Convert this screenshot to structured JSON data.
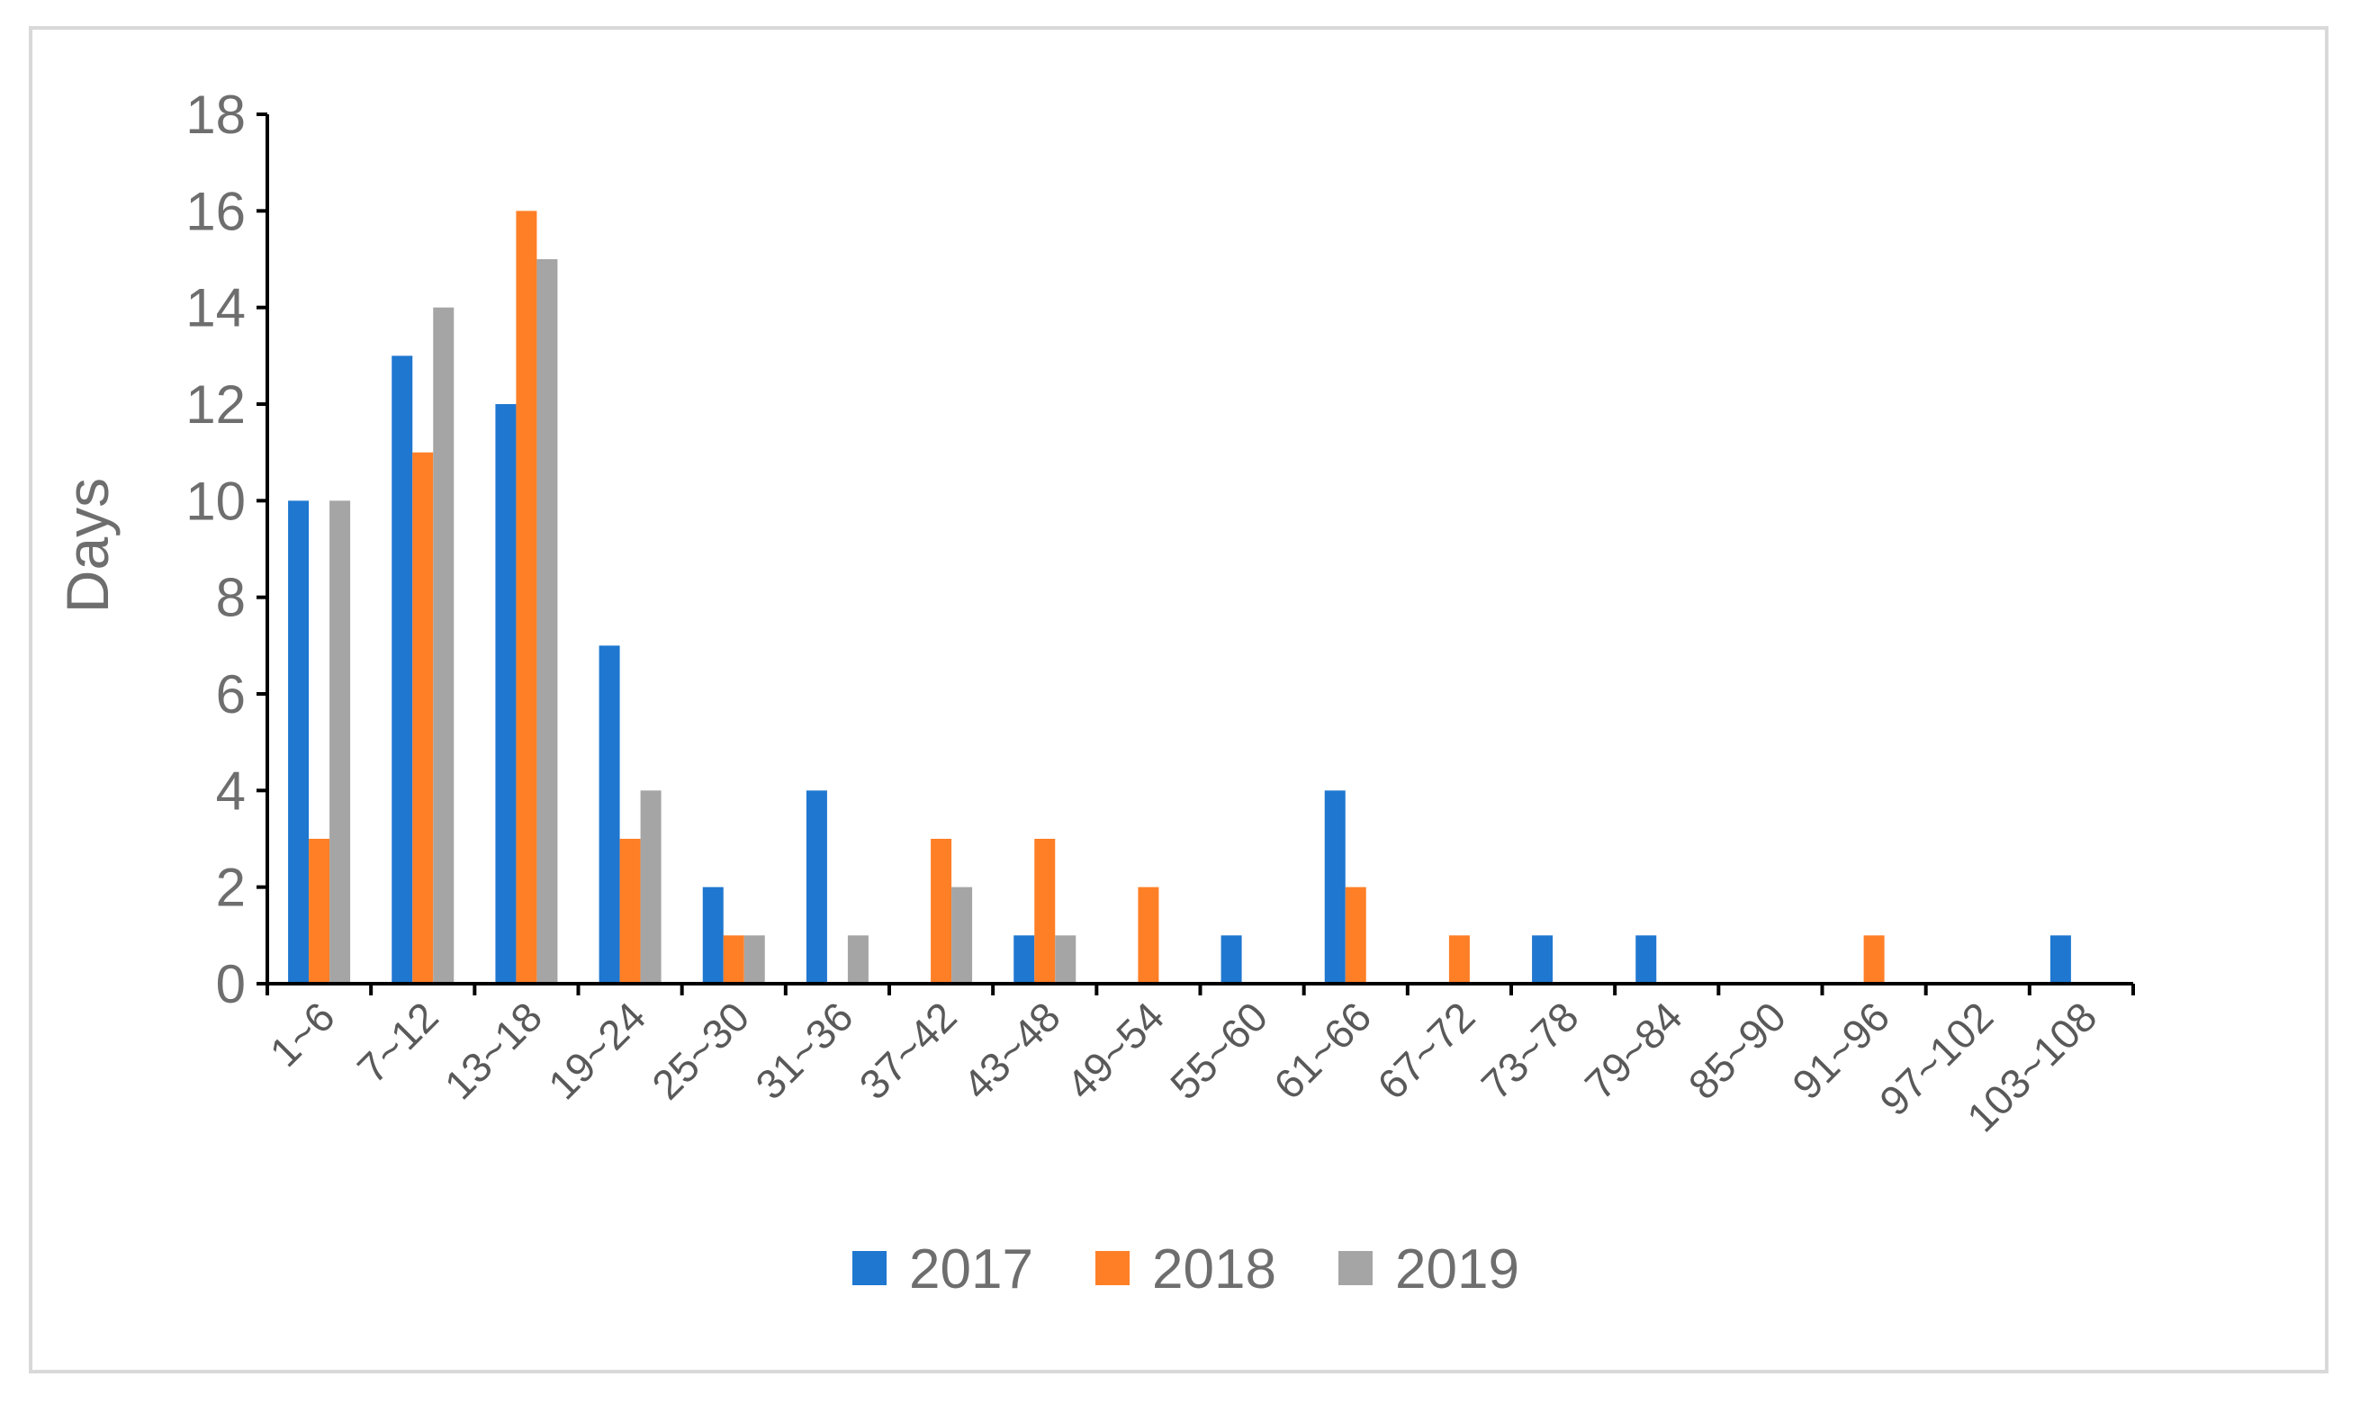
{
  "chart_data": {
    "type": "bar",
    "title": "",
    "xlabel": "",
    "ylabel": "Days",
    "ylim": [
      0,
      18
    ],
    "yticks": [
      0,
      2,
      4,
      6,
      8,
      10,
      12,
      14,
      16,
      18
    ],
    "grid": false,
    "legend_position": "bottom",
    "categories": [
      "1~6",
      "7~12",
      "13~18",
      "19~24",
      "25~30",
      "31~36",
      "37~42",
      "43~48",
      "49~54",
      "55~60",
      "61~66",
      "67~72",
      "73~78",
      "79~84",
      "85~90",
      "91~96",
      "97~102",
      "103~108"
    ],
    "series": [
      {
        "name": "2017",
        "color": "#1f77d0",
        "values": [
          10,
          13,
          12,
          7,
          2,
          4,
          0,
          1,
          0,
          1,
          4,
          0,
          1,
          1,
          0,
          0,
          0,
          1
        ]
      },
      {
        "name": "2018",
        "color": "#ff7f27",
        "values": [
          3,
          11,
          16,
          3,
          1,
          0,
          3,
          3,
          2,
          0,
          2,
          1,
          0,
          0,
          0,
          1,
          0,
          0
        ]
      },
      {
        "name": "2019",
        "color": "#a5a5a5",
        "values": [
          10,
          14,
          15,
          4,
          1,
          1,
          2,
          1,
          0,
          0,
          0,
          0,
          0,
          0,
          0,
          0,
          0,
          0
        ]
      }
    ]
  }
}
